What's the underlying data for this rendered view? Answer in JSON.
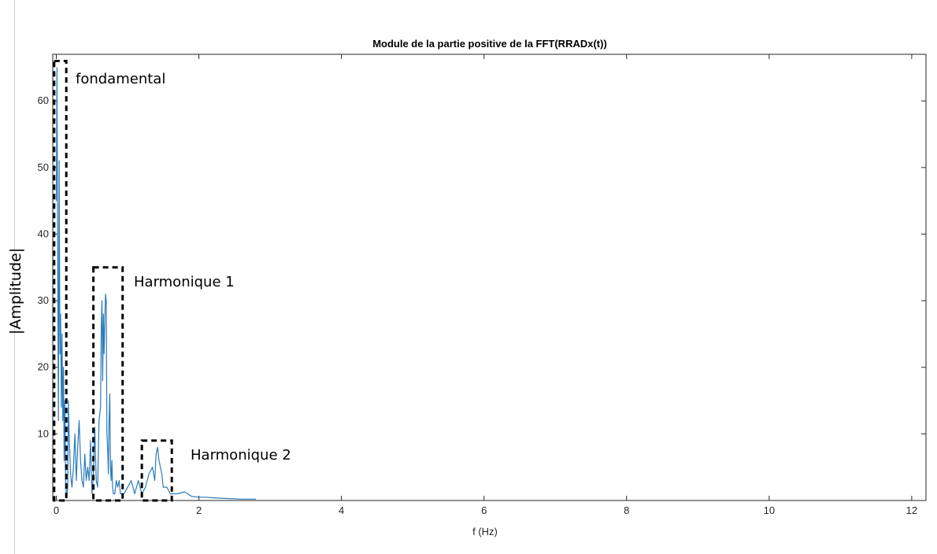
{
  "chart_data": {
    "type": "line",
    "title": "Module de la partie positive de la FFT(RRADx(t))",
    "xlabel": "f (Hz)",
    "ylabel": "|Amplitude|",
    "xlim": [
      -0.05,
      12.2
    ],
    "ylim": [
      0,
      67
    ],
    "xticks": [
      0,
      2,
      4,
      6,
      8,
      10,
      12
    ],
    "yticks": [
      10,
      20,
      30,
      40,
      50,
      60
    ],
    "grid": false,
    "color": "#2b7bba",
    "series": [
      {
        "x": [
          0.0,
          0.01,
          0.02,
          0.03,
          0.04,
          0.05,
          0.06,
          0.07,
          0.08,
          0.09,
          0.1,
          0.11,
          0.12,
          0.13,
          0.14,
          0.15,
          0.16,
          0.17,
          0.18,
          0.2,
          0.22,
          0.24,
          0.26,
          0.28,
          0.3,
          0.32,
          0.34,
          0.36,
          0.38,
          0.4,
          0.42,
          0.44,
          0.46,
          0.48,
          0.5,
          0.52,
          0.54,
          0.56,
          0.58,
          0.6,
          0.62,
          0.63,
          0.64,
          0.65,
          0.66,
          0.67,
          0.68,
          0.69,
          0.7,
          0.71,
          0.72,
          0.73,
          0.74,
          0.75,
          0.76,
          0.77,
          0.78,
          0.79,
          0.8,
          0.82,
          0.84,
          0.86,
          0.88,
          0.9,
          0.92,
          0.95,
          1.0,
          1.05,
          1.1,
          1.15,
          1.2,
          1.25,
          1.3,
          1.35,
          1.38,
          1.4,
          1.42,
          1.44,
          1.46,
          1.48,
          1.5,
          1.55,
          1.6,
          1.65,
          1.7,
          1.8,
          1.9,
          2.0,
          2.1,
          2.2,
          2.4,
          2.6,
          2.8
        ],
        "y": [
          45,
          65,
          36,
          12,
          51,
          22,
          28,
          14,
          25,
          12,
          20,
          6,
          15,
          3,
          1,
          1,
          2,
          15,
          10,
          4,
          2,
          5,
          10,
          3,
          8,
          12,
          6,
          3,
          2,
          7,
          3,
          5,
          3,
          9,
          1,
          4,
          11,
          3,
          2,
          12,
          14,
          26,
          30,
          18,
          28,
          22,
          27,
          31,
          30,
          10,
          8,
          4,
          12,
          16,
          5,
          3,
          6,
          2,
          1,
          1,
          3,
          2,
          3,
          1,
          1,
          1,
          2,
          3,
          1,
          3,
          1,
          2,
          4,
          5,
          3,
          7,
          8,
          6,
          5,
          4,
          2,
          2,
          1,
          1,
          1,
          1.3,
          0.6,
          0.5,
          0.5,
          0.4,
          0.3,
          0.2,
          0.2
        ]
      }
    ]
  },
  "annotations": [
    "fondamental",
    "Harmonique 1",
    "Harmonique 2"
  ]
}
